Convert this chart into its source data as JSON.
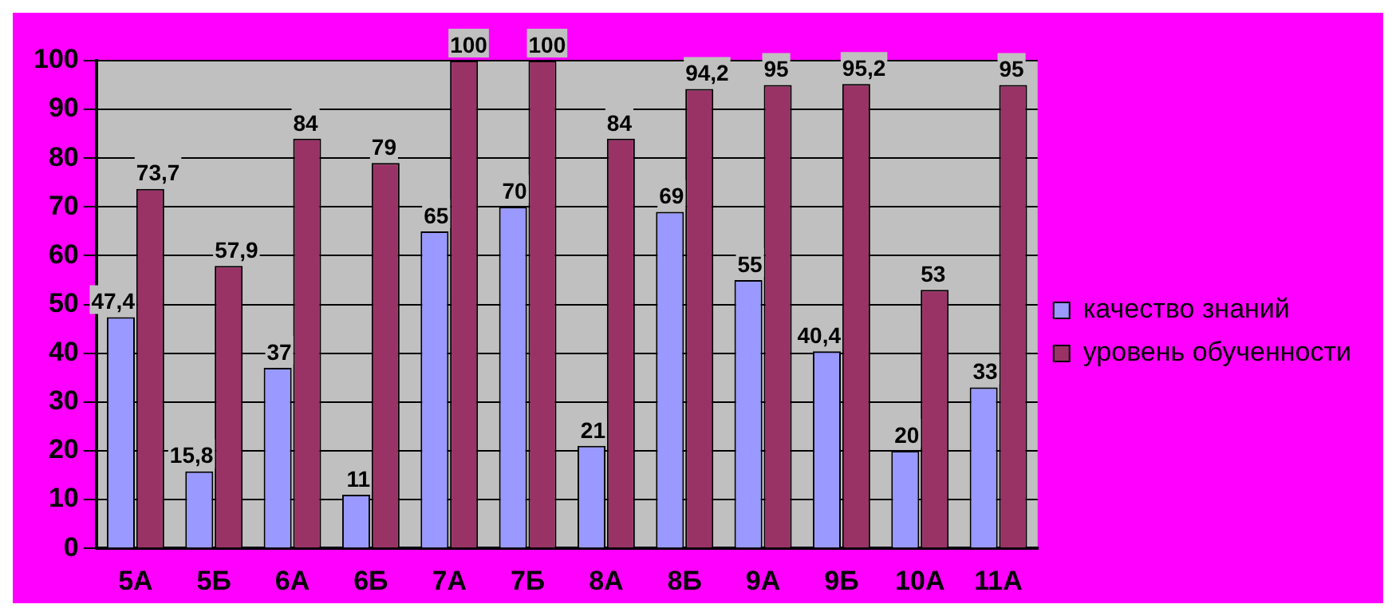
{
  "chart_data": {
    "type": "bar",
    "categories": [
      "5А",
      "5Б",
      "6А",
      "6Б",
      "7А",
      "7Б",
      "8А",
      "8Б",
      "9А",
      "9Б",
      "10А",
      "11А"
    ],
    "series": [
      {
        "name": "качество знаний",
        "color": "#9999ff",
        "values": [
          47.4,
          15.8,
          37,
          11,
          65,
          70,
          21,
          69,
          55,
          40.4,
          20,
          33
        ],
        "value_labels": [
          "47,4",
          "15,8",
          "37",
          "11",
          "65",
          "70",
          "21",
          "69",
          "55",
          "40,4",
          "20",
          "33"
        ]
      },
      {
        "name": "уровень обученности",
        "color": "#993366",
        "values": [
          73.7,
          57.9,
          84,
          79,
          100,
          100,
          84,
          94.2,
          95,
          95.2,
          53,
          95
        ],
        "value_labels": [
          "73,7",
          "57,9",
          "84",
          "79",
          "100",
          "100",
          "84",
          "94,2",
          "95",
          "95,2",
          "53",
          "95"
        ]
      }
    ],
    "ylim": [
      0,
      100
    ],
    "yticks": [
      0,
      10,
      20,
      30,
      40,
      50,
      60,
      70,
      80,
      90,
      100
    ],
    "grid": "y",
    "legend": "right"
  }
}
